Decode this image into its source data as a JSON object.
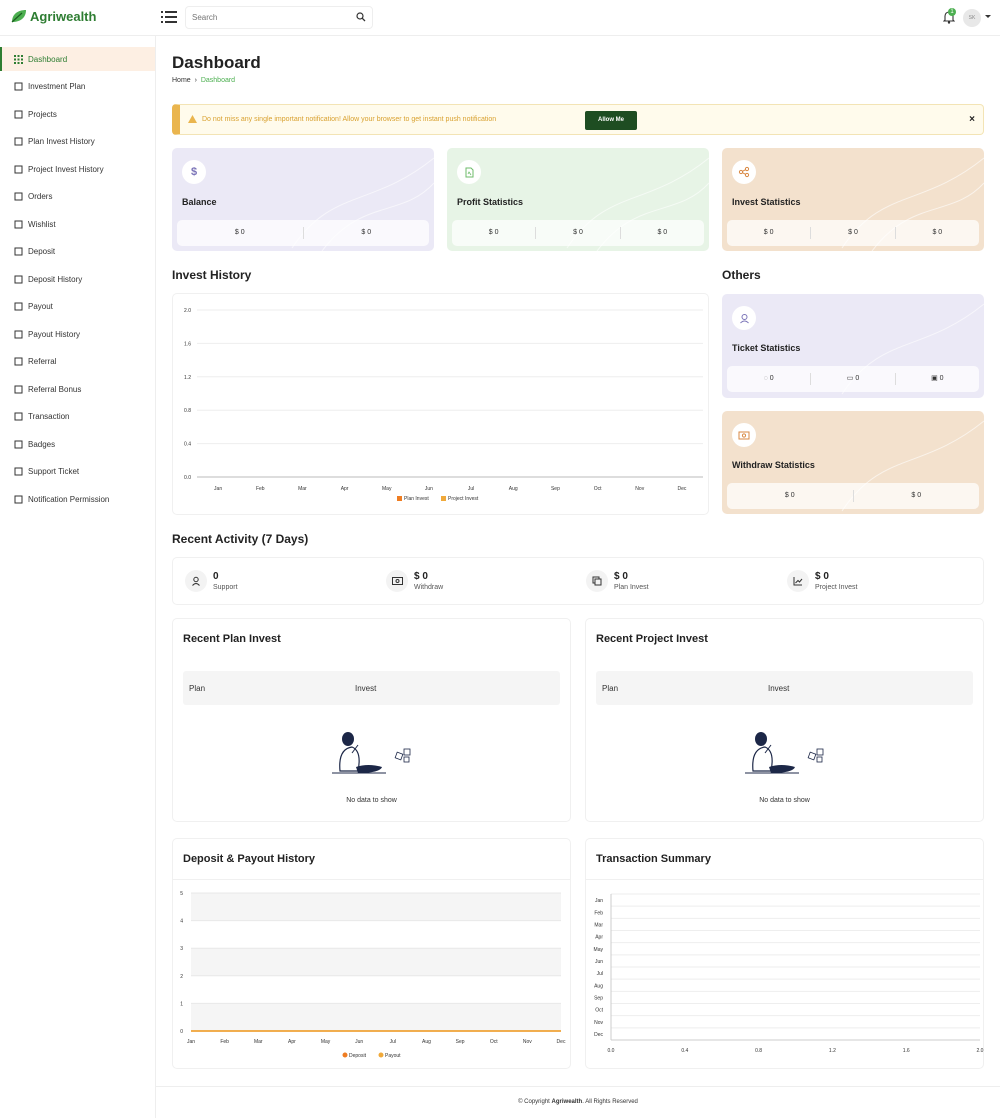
{
  "brand": {
    "name": "Agriwealth"
  },
  "search": {
    "placeholder": "Search"
  },
  "notifications": {
    "count": "1"
  },
  "user": {
    "initials": "SK"
  },
  "sidebar": {
    "items": [
      {
        "label": "Dashboard",
        "icon": "grid-icon",
        "active": true
      },
      {
        "label": "Investment Plan",
        "icon": "globe-icon"
      },
      {
        "label": "Projects",
        "icon": "boxes-icon"
      },
      {
        "label": "Plan Invest History",
        "icon": "box-icon"
      },
      {
        "label": "Project Invest History",
        "icon": "users-icon"
      },
      {
        "label": "Orders",
        "icon": "cart-icon"
      },
      {
        "label": "Wishlist",
        "icon": "heart-icon"
      },
      {
        "label": "Deposit",
        "icon": "wallet-icon"
      },
      {
        "label": "Deposit History",
        "icon": "server-icon"
      },
      {
        "label": "Payout",
        "icon": "hand-coin-icon"
      },
      {
        "label": "Payout History",
        "icon": "table-icon"
      },
      {
        "label": "Referral",
        "icon": "chart-line-icon"
      },
      {
        "label": "Referral Bonus",
        "icon": "gift-icon"
      },
      {
        "label": "Transaction",
        "icon": "trend-icon"
      },
      {
        "label": "Badges",
        "icon": "badge-icon"
      },
      {
        "label": "Support Ticket",
        "icon": "headset-icon"
      },
      {
        "label": "Notification Permission",
        "icon": "bell-icon"
      }
    ]
  },
  "page": {
    "title": "Dashboard",
    "breadcrumb": [
      "Home",
      "Dashboard"
    ]
  },
  "notice": {
    "text": "Do not miss any single important notification! Allow your browser to get instant push notification",
    "button": "Allow Me",
    "close": "×"
  },
  "stats": {
    "balance": {
      "title": "Balance",
      "values": [
        "$ 0",
        "$ 0"
      ],
      "color": "#ebe9f6"
    },
    "profit": {
      "title": "Profit Statistics",
      "values": [
        "$ 0",
        "$ 0",
        "$ 0"
      ],
      "color": "#e7f4e6"
    },
    "invest": {
      "title": "Invest Statistics",
      "values": [
        "$ 0",
        "$ 0",
        "$ 0"
      ],
      "color": "#f3e1cd"
    }
  },
  "invest_history": {
    "title": "Invest History"
  },
  "others": {
    "title": "Others",
    "ticket": {
      "title": "Ticket Statistics",
      "values": [
        "0",
        "0",
        "0"
      ]
    },
    "withdraw": {
      "title": "Withdraw Statistics",
      "values": [
        "$ 0",
        "$ 0"
      ]
    }
  },
  "recent_activity": {
    "title": "Recent Activity (7 Days)",
    "items": [
      {
        "value": "0",
        "label": "Support"
      },
      {
        "value": "$ 0",
        "label": "Withdraw"
      },
      {
        "value": "$ 0",
        "label": "Plan Invest"
      },
      {
        "value": "$ 0",
        "label": "Project Invest"
      }
    ]
  },
  "recent_plan": {
    "title": "Recent Plan Invest",
    "cols": [
      "Plan",
      "Invest"
    ],
    "empty": "No data to show"
  },
  "recent_project": {
    "title": "Recent Project Invest",
    "cols": [
      "Plan",
      "Invest"
    ],
    "empty": "No data to show"
  },
  "deposit_payout": {
    "title": "Deposit & Payout History"
  },
  "transaction_summary": {
    "title": "Transaction Summary"
  },
  "footer": {
    "prefix": "© Copyright",
    "brand": "Agriwealth",
    "suffix": ". All Rights Reserved"
  },
  "colors": {
    "accent": "#2e7d32",
    "orange": "#ef7d22",
    "amber": "#f0a93a"
  },
  "chart_data": [
    {
      "type": "bar",
      "title": "Invest History",
      "categories": [
        "Jan",
        "Feb",
        "Mar",
        "Apr",
        "May",
        "Jun",
        "Jul",
        "Aug",
        "Sep",
        "Oct",
        "Nov",
        "Dec"
      ],
      "series": [
        {
          "name": "Plan Invest",
          "values": [
            0,
            0,
            0,
            0,
            0,
            0,
            0,
            0,
            0,
            0,
            0,
            0
          ]
        },
        {
          "name": "Project Invest",
          "values": [
            0,
            0,
            0,
            0,
            0,
            0,
            0,
            0,
            0,
            0,
            0,
            0
          ]
        }
      ],
      "yticks": [
        "0.0",
        "0.4",
        "0.8",
        "1.2",
        "1.6",
        "2.0"
      ],
      "ylim": [
        0,
        2
      ],
      "legend": "bottom"
    },
    {
      "type": "line",
      "title": "Deposit & Payout History",
      "categories": [
        "Jan",
        "Feb",
        "Mar",
        "Apr",
        "May",
        "Jun",
        "Jul",
        "Aug",
        "Sep",
        "Oct",
        "Nov",
        "Dec"
      ],
      "series": [
        {
          "name": "Deposit",
          "values": [
            0,
            0,
            0,
            0,
            0,
            0,
            0,
            0,
            0,
            0,
            0,
            0
          ]
        },
        {
          "name": "Payout",
          "values": [
            0,
            0,
            0,
            0,
            0,
            0,
            0,
            0,
            0,
            0,
            0,
            0
          ]
        }
      ],
      "yticks": [
        "0",
        "1",
        "2",
        "3",
        "4",
        "5"
      ],
      "ylim": [
        0,
        5
      ],
      "legend": "bottom"
    },
    {
      "type": "bar",
      "title": "Transaction Summary",
      "orientation": "horizontal",
      "categories": [
        "Jan",
        "Feb",
        "Mar",
        "Apr",
        "May",
        "Jun",
        "Jul",
        "Aug",
        "Sep",
        "Oct",
        "Nov",
        "Dec"
      ],
      "values": [
        0,
        0,
        0,
        0,
        0,
        0,
        0,
        0,
        0,
        0,
        0,
        0
      ],
      "xticks": [
        "0.0",
        "0.4",
        "0.8",
        "1.2",
        "1.6",
        "2.0"
      ],
      "xlim": [
        0,
        2
      ]
    }
  ]
}
